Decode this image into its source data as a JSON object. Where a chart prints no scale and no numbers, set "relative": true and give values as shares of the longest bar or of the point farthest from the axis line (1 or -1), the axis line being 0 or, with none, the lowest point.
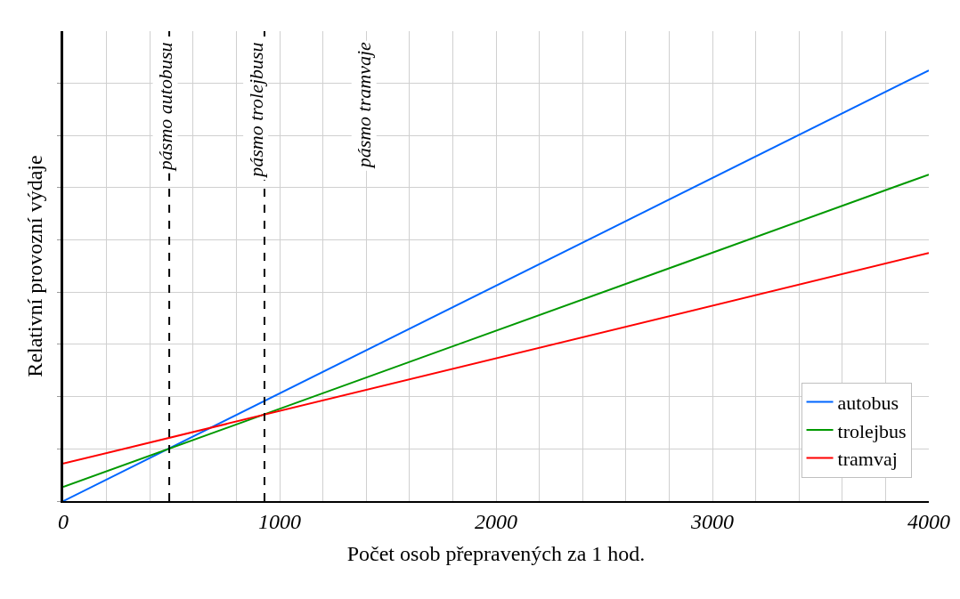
{
  "chart_data": {
    "type": "line",
    "relative": true,
    "xlabel": "Počet osob přepravených za 1 hod.",
    "ylabel": "Relativní provozní výdaje",
    "x": [
      0,
      4000
    ],
    "xlim": [
      0,
      4000
    ],
    "xticks": [
      0,
      1000,
      2000,
      3000,
      4000
    ],
    "series": [
      {
        "name": "autobus",
        "color": "#0066ff",
        "values": [
          0,
          1
        ]
      },
      {
        "name": "trolejbus",
        "color": "#009900",
        "values": [
          0.033,
          0.758
        ]
      },
      {
        "name": "tramvaj",
        "color": "#ff0000",
        "values": [
          0.087,
          0.576
        ]
      }
    ],
    "ref_lines": [
      {
        "axis": "x",
        "value": 490,
        "color": "#000000",
        "line_style": "dashed"
      },
      {
        "axis": "x",
        "value": 930,
        "color": "#000000",
        "line_style": "dashed"
      }
    ],
    "annotations": [
      "pásmo autobusu",
      "pásmo trolejbusu",
      "pásmo tramvaje"
    ],
    "grid": true,
    "legend": "bottom right",
    "line_style": "solid",
    "marker": "none"
  }
}
